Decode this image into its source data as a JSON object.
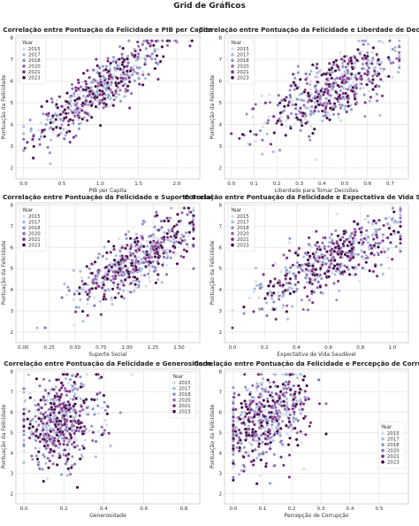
{
  "suptitle": "Grid de Gráficos",
  "legend": {
    "title": "Year",
    "years": [
      "2015",
      "2017",
      "2018",
      "2020",
      "2021",
      "2023"
    ],
    "colors": [
      "#d9dcec",
      "#a9bddb",
      "#8c96c6",
      "#8c6bb1",
      "#7a2a83",
      "#3d0444"
    ]
  },
  "chart_data": [
    {
      "type": "scatter",
      "title": "Correlação entre Pontuação da Felicidade e PIB per Capita",
      "xlabel": "PIB per Capita",
      "ylabel": "Pontuação da Felicidade",
      "xlim": [
        -0.1,
        2.3
      ],
      "ylim": [
        1.5,
        8.1
      ],
      "xticks": [
        0.0,
        0.5,
        1.0,
        1.5,
        2.0
      ],
      "xtick_labels": [
        "0.0",
        "0.5",
        "1.0",
        "1.5",
        "2.0"
      ],
      "yticks": [
        2,
        3,
        4,
        5,
        6,
        7,
        8
      ],
      "legend_position": "upper left",
      "trend": {
        "x_mean": 1.0,
        "x_sd": 0.42,
        "x_min": 0.0,
        "x_max": 2.2,
        "intercept": 3.3,
        "slope": 2.3,
        "noise": 0.6
      }
    },
    {
      "type": "scatter",
      "title": "Correlação entre Pontuação da Felicidade e Liberdade de Decisão",
      "xlabel": "Liberdade para Tomar Decisões",
      "ylabel": "Pontuação da Felicidade",
      "xlim": [
        -0.03,
        0.78
      ],
      "ylim": [
        1.5,
        8.1
      ],
      "xticks": [
        0.0,
        0.1,
        0.2,
        0.3,
        0.4,
        0.5,
        0.6,
        0.7
      ],
      "xtick_labels": [
        "0.0",
        "0.1",
        "0.2",
        "0.3",
        "0.4",
        "0.5",
        "0.6",
        "0.7"
      ],
      "yticks": [
        2,
        3,
        4,
        5,
        6,
        7,
        8
      ],
      "legend_position": "upper left",
      "trend": {
        "x_mean": 0.45,
        "x_sd": 0.15,
        "x_min": 0.0,
        "x_max": 0.74,
        "intercept": 3.4,
        "slope": 5.0,
        "noise": 0.75
      }
    },
    {
      "type": "scatter",
      "title": "Correlação entre Pontuação da Felicidade e Suporte Social",
      "xlabel": "Suporte Social",
      "ylabel": "Pontuação da Felicidade",
      "xlim": [
        -0.07,
        1.7
      ],
      "ylim": [
        1.5,
        8.1
      ],
      "xticks": [
        0.0,
        0.25,
        0.5,
        0.75,
        1.0,
        1.25,
        1.5
      ],
      "xtick_labels": [
        "0.00",
        "0.25",
        "0.50",
        "0.75",
        "1.00",
        "1.25",
        "1.50"
      ],
      "yticks": [
        2,
        3,
        4,
        5,
        6,
        7,
        8
      ],
      "legend_position": "upper left",
      "trend": {
        "x_mean": 1.1,
        "x_sd": 0.3,
        "x_min": 0.0,
        "x_max": 1.64,
        "intercept": 2.6,
        "slope": 2.6,
        "noise": 0.65
      }
    },
    {
      "type": "scatter",
      "title": "Correlação entre Pontuação da Felicidade e Expectativa de Vida Saudável",
      "xlabel": "Expectativa de Vida Saudável",
      "ylabel": "Pontuação da Felicidade",
      "xlim": [
        -0.05,
        1.1
      ],
      "ylim": [
        1.5,
        8.1
      ],
      "xticks": [
        0.0,
        0.2,
        0.4,
        0.6,
        0.8,
        1.0
      ],
      "xtick_labels": [
        "0.0",
        "0.2",
        "0.4",
        "0.6",
        "0.8",
        "1.0"
      ],
      "yticks": [
        2,
        3,
        4,
        5,
        6,
        7,
        8
      ],
      "legend_position": "upper left",
      "trend": {
        "x_mean": 0.63,
        "x_sd": 0.24,
        "x_min": 0.0,
        "x_max": 1.05,
        "intercept": 3.2,
        "slope": 3.6,
        "noise": 0.7
      }
    },
    {
      "type": "scatter",
      "title": "Correlação entre Pontuação da Felicidade e Generosidade",
      "xlabel": "Generosidade",
      "ylabel": "Pontuação da Felicidade",
      "xlim": [
        -0.04,
        0.88
      ],
      "ylim": [
        1.5,
        8.1
      ],
      "xticks": [
        0.0,
        0.2,
        0.4,
        0.6,
        0.8
      ],
      "xtick_labels": [
        "0.0",
        "0.2",
        "0.4",
        "0.6",
        "0.8"
      ],
      "yticks": [
        2,
        3,
        4,
        5,
        6,
        7,
        8
      ],
      "legend_position": "upper right",
      "trend": {
        "x_mean": 0.18,
        "x_sd": 0.1,
        "x_min": 0.0,
        "x_max": 0.84,
        "intercept": 5.3,
        "slope": 1.0,
        "noise": 1.05
      }
    },
    {
      "type": "scatter",
      "title": "Correlação entre Pontuação da Felicidade e Percepção de Corrupção",
      "xlabel": "Percepção de Corrupção",
      "ylabel": "Pontuação da Felicidade",
      "xlim": [
        -0.03,
        0.6
      ],
      "ylim": [
        1.5,
        8.1
      ],
      "xticks": [
        0.0,
        0.1,
        0.2,
        0.3,
        0.4,
        0.5
      ],
      "xtick_labels": [
        "0.0",
        "0.1",
        "0.2",
        "0.3",
        "0.4",
        "0.5"
      ],
      "yticks": [
        2,
        3,
        4,
        5,
        6,
        7,
        8
      ],
      "legend_position": "center right",
      "trend": {
        "x_mean": 0.11,
        "x_sd": 0.08,
        "x_min": 0.0,
        "x_max": 0.55,
        "intercept": 5.0,
        "slope": 6.0,
        "noise": 0.95
      }
    }
  ]
}
